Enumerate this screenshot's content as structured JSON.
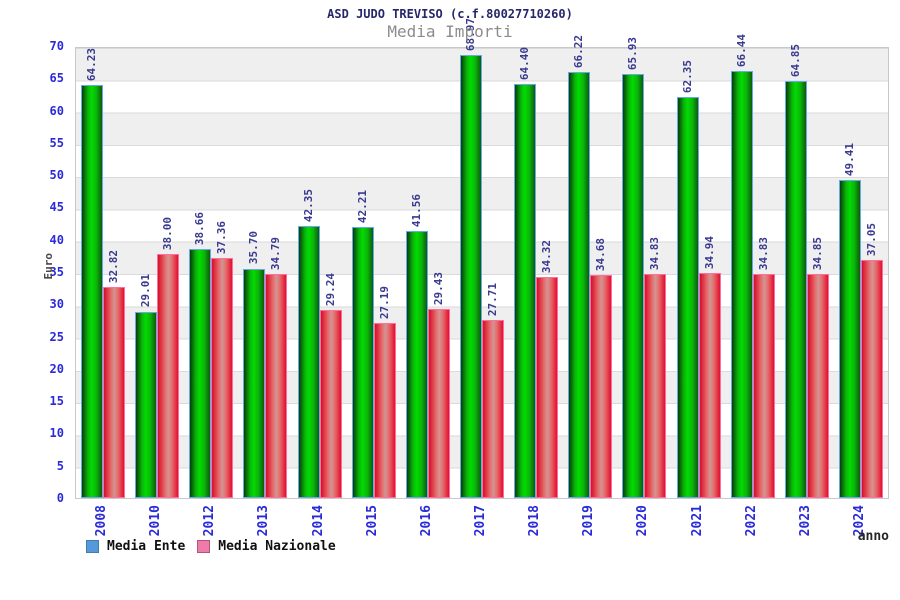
{
  "chart_data": {
    "type": "bar",
    "title": "ASD JUDO TREVISO (c.f.80027710260)",
    "subtitle": "Media Importi",
    "xlabel": "anno",
    "ylabel": "Euro",
    "ylim": [
      0,
      70
    ],
    "yticks": [
      0,
      5,
      10,
      15,
      20,
      25,
      30,
      35,
      40,
      45,
      50,
      55,
      60,
      65,
      70
    ],
    "grid": "horizontal-bands",
    "legend_position": "bottom-left",
    "categories": [
      "2008",
      "2010",
      "2012",
      "2013",
      "2014",
      "2015",
      "2016",
      "2017",
      "2018",
      "2019",
      "2020",
      "2021",
      "2022",
      "2023",
      "2024"
    ],
    "series": [
      {
        "name": "Media Ente",
        "legend_color": "#5599dd",
        "bar_color": "#00cc00",
        "values": [
          64.23,
          29.01,
          38.66,
          35.7,
          42.35,
          42.21,
          41.56,
          68.97,
          64.4,
          66.22,
          65.93,
          62.35,
          66.44,
          64.85,
          49.41
        ]
      },
      {
        "name": "Media Nazionale",
        "legend_color": "#ee7bab",
        "bar_color": "#e01030",
        "values": [
          32.82,
          38.0,
          37.36,
          34.79,
          29.24,
          27.19,
          29.43,
          27.71,
          34.32,
          34.68,
          34.83,
          34.94,
          34.83,
          34.85,
          37.05
        ]
      }
    ],
    "colors": {
      "axis_tick_text": "#2a2ad8",
      "value_label_text": "#3a3a90",
      "title_text": "#26266b",
      "subtitle_text": "#8c8c8c",
      "band_gray": "#efefef",
      "band_white": "#ffffff"
    }
  }
}
